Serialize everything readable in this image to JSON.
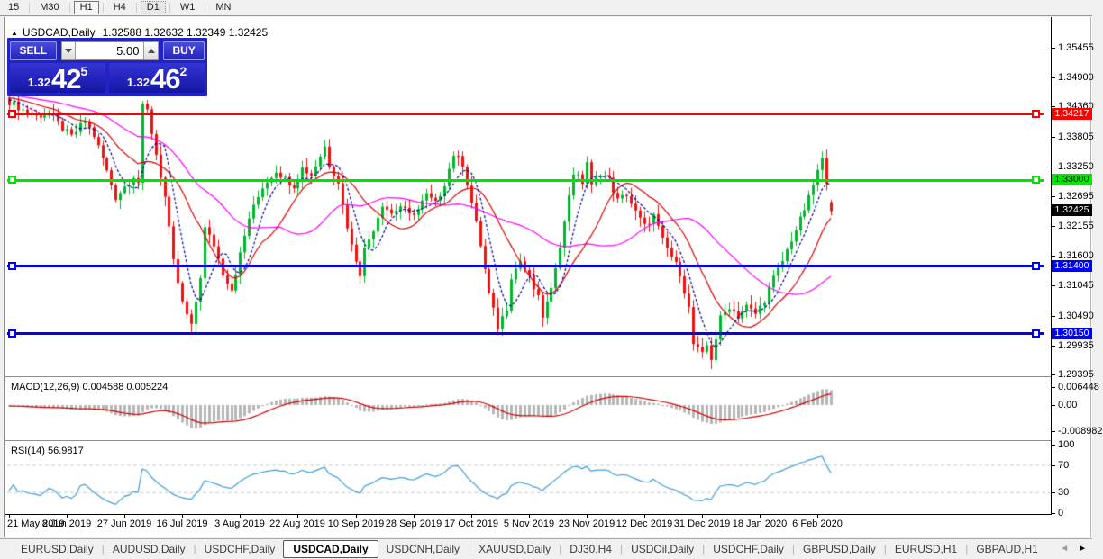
{
  "toolbar": {
    "timeframes": [
      "15",
      "M30",
      "H1",
      "H4",
      "D1",
      "W1",
      "MN"
    ],
    "boxed": "H1",
    "active": "D1"
  },
  "window": {
    "title_arrow": "▲",
    "symbol": "USDCAD,Daily",
    "ohlc_text": "1.32588 1.32632 1.32349 1.32425"
  },
  "trade_panel": {
    "sell_label": "SELL",
    "buy_label": "BUY",
    "volume": "5.00",
    "sell_price": {
      "small": "1.32",
      "big": "42",
      "sup": "5"
    },
    "buy_price": {
      "small": "1.32",
      "big": "46",
      "sup": "2"
    }
  },
  "indicators": {
    "macd_label": "MACD(12,26,9) 0.004588 0.005224",
    "rsi_label": "RSI(14) 56.9817",
    "macd_axis": [
      {
        "label": "0.006448",
        "v": 0.006448
      },
      {
        "label": "0.00",
        "v": 0
      },
      {
        "label": "-0.008982",
        "v": -0.008982
      }
    ],
    "rsi_axis": [
      {
        "label": "100",
        "v": 100
      },
      {
        "label": "70",
        "v": 70
      },
      {
        "label": "30",
        "v": 30
      },
      {
        "label": "0",
        "v": 0
      }
    ]
  },
  "price_axis": {
    "ticks": [
      {
        "label": "1.35455",
        "price": 1.35455
      },
      {
        "label": "1.34900",
        "price": 1.349
      },
      {
        "label": "1.34360",
        "price": 1.3436
      },
      {
        "label": "1.33805",
        "price": 1.33805
      },
      {
        "label": "1.33250",
        "price": 1.3325
      },
      {
        "label": "1.32695",
        "price": 1.32695
      },
      {
        "label": "1.32155",
        "price": 1.32155
      },
      {
        "label": "1.31600",
        "price": 1.316
      },
      {
        "label": "1.31045",
        "price": 1.31045
      },
      {
        "label": "1.30490",
        "price": 1.3049
      },
      {
        "label": "1.29935",
        "price": 1.29935
      },
      {
        "label": "1.29395",
        "price": 1.29395
      }
    ],
    "tags": [
      {
        "label": "1.34217",
        "price": 1.34217,
        "bg": "#ff0000",
        "fg": "#ffffff",
        "name": "resistance-1-34217"
      },
      {
        "label": "1.33000",
        "price": 1.33,
        "bg": "#00e800",
        "fg": "#000000",
        "name": "pivot-1-33000"
      },
      {
        "label": "1.32425",
        "price": 1.32425,
        "bg": "#000000",
        "fg": "#ffffff",
        "name": "current-price"
      },
      {
        "label": "1.31400",
        "price": 1.314,
        "bg": "#0000ff",
        "fg": "#ffffff",
        "name": "support-1-31400"
      },
      {
        "label": "1.30150",
        "price": 1.3015,
        "bg": "#0000ff",
        "fg": "#ffffff",
        "name": "support-1-30150"
      }
    ]
  },
  "date_axis": {
    "labels": [
      "21 May 2019",
      "8 Jun 2019",
      "27 Jun 2019",
      "16 Jul 2019",
      "3 Aug 2019",
      "22 Aug 2019",
      "10 Sep 2019",
      "28 Sep 2019",
      "17 Oct 2019",
      "5 Nov 2019",
      "23 Nov 2019",
      "12 Dec 2019",
      "31 Dec 2019",
      "18 Jan 2020",
      "6 Feb 2020"
    ],
    "bar_step": 13
  },
  "bottom_tabs": {
    "items": [
      "EURUSD,Daily",
      "AUDUSD,Daily",
      "USDCHF,Daily",
      "USDCAD,Daily",
      "USDCNH,Daily",
      "XAUUSD,Daily",
      "DJ30,H4",
      "USDOil,Daily",
      "USDCHF,Daily",
      "GBPUSD,Daily",
      "EURUSD,H1",
      "GBPAUD,H1"
    ],
    "active_index": 3,
    "left_arrow": "◄",
    "right_arrow": "►"
  },
  "chart_data": {
    "type": "candlestick",
    "symbol": "USDCAD",
    "timeframe": "Daily",
    "x_range_dates": [
      "21 May 2019",
      "6 Feb 2020"
    ],
    "bar_count": 186,
    "y_axis": {
      "min": 1.2946,
      "max": 1.3582
    },
    "current_bar": {
      "open": 1.32588,
      "high": 1.32632,
      "low": 1.32349,
      "close": 1.32425
    },
    "price_anchors": [
      [
        0,
        1.3445
      ],
      [
        3,
        1.343
      ],
      [
        6,
        1.3418
      ],
      [
        9,
        1.3424
      ],
      [
        12,
        1.3396
      ],
      [
        14,
        1.338
      ],
      [
        17,
        1.341
      ],
      [
        19,
        1.3382
      ],
      [
        21,
        1.334
      ],
      [
        24,
        1.3268
      ],
      [
        26,
        1.3288
      ],
      [
        28,
        1.3308
      ],
      [
        29,
        1.3296
      ],
      [
        30,
        1.3435
      ],
      [
        31,
        1.3428
      ],
      [
        33,
        1.3348
      ],
      [
        35,
        1.3268
      ],
      [
        37,
        1.3148
      ],
      [
        39,
        1.3072
      ],
      [
        41,
        1.3028
      ],
      [
        43,
        1.3122
      ],
      [
        44,
        1.321
      ],
      [
        46,
        1.318
      ],
      [
        48,
        1.3128
      ],
      [
        50,
        1.3098
      ],
      [
        52,
        1.3162
      ],
      [
        54,
        1.323
      ],
      [
        57,
        1.3288
      ],
      [
        60,
        1.3318
      ],
      [
        62,
        1.3302
      ],
      [
        64,
        1.329
      ],
      [
        66,
        1.3322
      ],
      [
        68,
        1.331
      ],
      [
        70,
        1.3345
      ],
      [
        71,
        1.3362
      ],
      [
        72,
        1.3328
      ],
      [
        74,
        1.3298
      ],
      [
        75,
        1.3252
      ],
      [
        77,
        1.3178
      ],
      [
        79,
        1.3128
      ],
      [
        80,
        1.3172
      ],
      [
        82,
        1.321
      ],
      [
        84,
        1.3256
      ],
      [
        86,
        1.3238
      ],
      [
        88,
        1.3252
      ],
      [
        90,
        1.3234
      ],
      [
        92,
        1.3246
      ],
      [
        94,
        1.3272
      ],
      [
        96,
        1.3256
      ],
      [
        98,
        1.3294
      ],
      [
        100,
        1.3348
      ],
      [
        102,
        1.333
      ],
      [
        104,
        1.3258
      ],
      [
        106,
        1.318
      ],
      [
        108,
        1.3088
      ],
      [
        110,
        1.3028
      ],
      [
        112,
        1.3064
      ],
      [
        113,
        1.3122
      ],
      [
        115,
        1.315
      ],
      [
        117,
        1.3118
      ],
      [
        119,
        1.308
      ],
      [
        120,
        1.3048
      ],
      [
        122,
        1.3094
      ],
      [
        123,
        1.3142
      ],
      [
        125,
        1.322
      ],
      [
        126,
        1.3274
      ],
      [
        127,
        1.3314
      ],
      [
        129,
        1.3296
      ],
      [
        130,
        1.3334
      ],
      [
        131,
        1.3288
      ],
      [
        133,
        1.3314
      ],
      [
        135,
        1.33
      ],
      [
        137,
        1.3262
      ],
      [
        139,
        1.3274
      ],
      [
        141,
        1.324
      ],
      [
        143,
        1.3214
      ],
      [
        145,
        1.3234
      ],
      [
        147,
        1.3188
      ],
      [
        149,
        1.3158
      ],
      [
        151,
        1.3128
      ],
      [
        153,
        1.3062
      ],
      [
        154,
        1.2996
      ],
      [
        156,
        1.2976
      ],
      [
        157,
        1.2994
      ],
      [
        158,
        1.297
      ],
      [
        160,
        1.3044
      ],
      [
        162,
        1.3066
      ],
      [
        164,
        1.3048
      ],
      [
        166,
        1.3066
      ],
      [
        168,
        1.3052
      ],
      [
        170,
        1.3078
      ],
      [
        172,
        1.3118
      ],
      [
        174,
        1.315
      ],
      [
        176,
        1.319
      ],
      [
        178,
        1.3226
      ],
      [
        180,
        1.3266
      ],
      [
        182,
        1.3316
      ],
      [
        183,
        1.3336
      ],
      [
        184,
        1.33
      ],
      [
        185,
        1.32425
      ]
    ],
    "horizontal_lines": [
      {
        "name": "resistance",
        "price": 1.34217,
        "color": "#ff0000",
        "thickness": 2
      },
      {
        "name": "pivot",
        "price": 1.33,
        "color": "#00e400",
        "thickness": 3
      },
      {
        "name": "support-upper",
        "price": 1.314,
        "color": "#0000ff",
        "thickness": 3
      },
      {
        "name": "support-lower",
        "price": 1.3015,
        "color": "#0000ff",
        "thickness": 3
      }
    ],
    "moving_averages": [
      {
        "name": "fast",
        "period": 6,
        "color": "#000096",
        "style": "dashed"
      },
      {
        "name": "mid",
        "period": 14,
        "color": "#dc0000",
        "style": "solid"
      },
      {
        "name": "slow",
        "period": 32,
        "color": "#ff00ff",
        "style": "solid"
      }
    ],
    "macd": {
      "fast": 12,
      "slow": 26,
      "signal": 9,
      "current": [
        0.004588,
        0.005224
      ],
      "range": [
        -0.008982,
        0.006448
      ]
    },
    "rsi": {
      "period": 14,
      "current": 56.9817,
      "levels": [
        30,
        70
      ],
      "range": [
        0,
        100
      ]
    },
    "colors": {
      "up": "#00b62c",
      "down": "#ee1111",
      "macd_hist": "#b6b6b6",
      "macd_signal": "#cc0000",
      "rsi": "#3e9cdc"
    }
  }
}
